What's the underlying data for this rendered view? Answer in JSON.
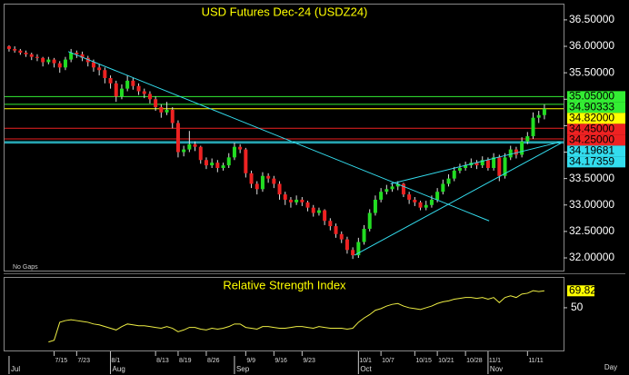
{
  "chart_data": [
    {
      "type": "candlestick",
      "title": "USD Futures Dec-24 (USDZ24)",
      "annotation": "No Gaps",
      "up_color": "#22dd22",
      "down_color": "#ee2222",
      "candles": [
        [
          36.0,
          36.02,
          35.9,
          35.95
        ],
        [
          35.95,
          36.0,
          35.88,
          35.92
        ],
        [
          35.92,
          35.95,
          35.84,
          35.88
        ],
        [
          35.88,
          35.92,
          35.8,
          35.85
        ],
        [
          35.85,
          35.88,
          35.74,
          35.8
        ],
        [
          35.8,
          35.85,
          35.72,
          35.78
        ],
        [
          35.78,
          35.8,
          35.62,
          35.7
        ],
        [
          35.7,
          35.8,
          35.66,
          35.75
        ],
        [
          35.75,
          35.78,
          35.6,
          35.68
        ],
        [
          35.68,
          35.72,
          35.5,
          35.6
        ],
        [
          35.6,
          35.8,
          35.55,
          35.75
        ],
        [
          35.75,
          35.95,
          35.7,
          35.88
        ],
        [
          35.88,
          35.92,
          35.78,
          35.85
        ],
        [
          35.85,
          35.9,
          35.72,
          35.78
        ],
        [
          35.78,
          35.82,
          35.62,
          35.7
        ],
        [
          35.7,
          35.75,
          35.52,
          35.6
        ],
        [
          35.6,
          35.66,
          35.45,
          35.55
        ],
        [
          35.55,
          35.6,
          35.3,
          35.4
        ],
        [
          35.4,
          35.45,
          35.2,
          35.3
        ],
        [
          35.3,
          35.35,
          34.95,
          35.05
        ],
        [
          35.05,
          35.28,
          35.0,
          35.2
        ],
        [
          35.2,
          35.45,
          35.15,
          35.35
        ],
        [
          35.35,
          35.4,
          35.18,
          35.25
        ],
        [
          35.25,
          35.3,
          35.08,
          35.15
        ],
        [
          35.15,
          35.2,
          35.02,
          35.1
        ],
        [
          35.1,
          35.15,
          34.92,
          35.0
        ],
        [
          35.0,
          35.05,
          34.78,
          34.85
        ],
        [
          34.85,
          34.9,
          34.65,
          34.75
        ],
        [
          34.75,
          34.95,
          34.7,
          34.8
        ],
        [
          34.8,
          34.85,
          34.45,
          34.55
        ],
        [
          34.55,
          34.6,
          33.9,
          34.0
        ],
        [
          34.0,
          34.12,
          33.92,
          34.05
        ],
        [
          34.05,
          34.4,
          34.0,
          34.15
        ],
        [
          34.15,
          34.2,
          34.02,
          34.1
        ],
        [
          34.1,
          34.12,
          33.78,
          33.85
        ],
        [
          33.85,
          33.9,
          33.68,
          33.75
        ],
        [
          33.75,
          33.88,
          33.7,
          33.8
        ],
        [
          33.8,
          33.85,
          33.62,
          33.7
        ],
        [
          33.7,
          33.8,
          33.65,
          33.75
        ],
        [
          33.75,
          33.98,
          33.7,
          33.9
        ],
        [
          33.9,
          34.18,
          33.85,
          34.1
        ],
        [
          34.1,
          34.15,
          33.98,
          34.05
        ],
        [
          34.05,
          34.08,
          33.52,
          33.6
        ],
        [
          33.6,
          33.65,
          33.32,
          33.4
        ],
        [
          33.4,
          33.45,
          33.2,
          33.3
        ],
        [
          33.3,
          33.62,
          33.25,
          33.55
        ],
        [
          33.55,
          33.6,
          33.42,
          33.5
        ],
        [
          33.5,
          33.55,
          33.32,
          33.4
        ],
        [
          33.4,
          33.45,
          33.1,
          33.2
        ],
        [
          33.2,
          33.25,
          33.0,
          33.1
        ],
        [
          33.1,
          33.15,
          32.95,
          33.05
        ],
        [
          33.05,
          33.18,
          33.0,
          33.1
        ],
        [
          33.1,
          33.15,
          32.98,
          33.05
        ],
        [
          33.05,
          33.08,
          32.88,
          32.95
        ],
        [
          32.95,
          33.0,
          32.78,
          32.85
        ],
        [
          32.85,
          32.95,
          32.8,
          32.9
        ],
        [
          32.9,
          32.92,
          32.62,
          32.7
        ],
        [
          32.7,
          32.75,
          32.52,
          32.6
        ],
        [
          32.6,
          32.65,
          32.38,
          32.45
        ],
        [
          32.45,
          32.5,
          32.28,
          32.35
        ],
        [
          32.35,
          32.4,
          32.08,
          32.15
        ],
        [
          32.15,
          32.2,
          31.98,
          32.05
        ],
        [
          32.05,
          32.38,
          32.0,
          32.3
        ],
        [
          32.3,
          32.62,
          32.25,
          32.55
        ],
        [
          32.55,
          32.92,
          32.5,
          32.85
        ],
        [
          32.85,
          33.18,
          32.8,
          33.1
        ],
        [
          33.1,
          33.32,
          33.05,
          33.25
        ],
        [
          33.25,
          33.38,
          33.2,
          33.3
        ],
        [
          33.3,
          33.42,
          33.25,
          33.35
        ],
        [
          33.35,
          33.45,
          33.28,
          33.4
        ],
        [
          33.4,
          33.42,
          33.15,
          33.2
        ],
        [
          33.2,
          33.25,
          33.02,
          33.1
        ],
        [
          33.1,
          33.15,
          32.98,
          33.05
        ],
        [
          33.05,
          33.08,
          32.9,
          32.95
        ],
        [
          32.95,
          33.08,
          32.9,
          33.0
        ],
        [
          33.0,
          33.18,
          32.95,
          33.1
        ],
        [
          33.1,
          33.32,
          33.05,
          33.25
        ],
        [
          33.25,
          33.48,
          33.2,
          33.4
        ],
        [
          33.4,
          33.58,
          33.35,
          33.5
        ],
        [
          33.5,
          33.72,
          33.45,
          33.65
        ],
        [
          33.65,
          33.78,
          33.6,
          33.7
        ],
        [
          33.7,
          33.82,
          33.65,
          33.75
        ],
        [
          33.75,
          33.88,
          33.7,
          33.8
        ],
        [
          33.8,
          33.85,
          33.68,
          33.75
        ],
        [
          33.75,
          33.92,
          33.7,
          33.85
        ],
        [
          33.85,
          33.9,
          33.65,
          33.7
        ],
        [
          33.7,
          33.98,
          33.65,
          33.9
        ],
        [
          33.9,
          33.95,
          33.45,
          33.55
        ],
        [
          33.55,
          33.98,
          33.5,
          33.9
        ],
        [
          33.9,
          34.12,
          33.85,
          34.05
        ],
        [
          34.05,
          34.1,
          33.88,
          33.95
        ],
        [
          33.95,
          34.28,
          33.9,
          34.2
        ],
        [
          34.2,
          34.38,
          34.15,
          34.3
        ],
        [
          34.3,
          34.75,
          34.25,
          34.65
        ],
        [
          34.65,
          34.78,
          34.55,
          34.7
        ],
        [
          34.7,
          34.9,
          34.62,
          34.82
        ]
      ],
      "xlim": [
        -0.8,
        98.4
      ],
      "xticks": [
        {
          "value": 8,
          "label": "7/15"
        },
        {
          "value": 12,
          "label": "7/23"
        },
        {
          "value": 18,
          "label": "8/1"
        },
        {
          "value": 26,
          "label": "8/13"
        },
        {
          "value": 30,
          "label": "8/19"
        },
        {
          "value": 35,
          "label": "8/26"
        },
        {
          "value": 42,
          "label": "9/9"
        },
        {
          "value": 47,
          "label": "9/16"
        },
        {
          "value": 52,
          "label": "9/23"
        },
        {
          "value": 62,
          "label": "10/1"
        },
        {
          "value": 66,
          "label": "10/7"
        },
        {
          "value": 72,
          "label": "10/15"
        },
        {
          "value": 76,
          "label": "10/21"
        },
        {
          "value": 81,
          "label": "10/28"
        },
        {
          "value": 85,
          "label": "11/1"
        },
        {
          "value": 92,
          "label": "11/11"
        }
      ],
      "month_ticks": [
        {
          "value": 0,
          "label": "Jul"
        },
        {
          "value": 18,
          "label": "Aug"
        },
        {
          "value": 40,
          "label": "Sep"
        },
        {
          "value": 62,
          "label": "Oct"
        },
        {
          "value": 85,
          "label": "Nov"
        }
      ],
      "x_unit_label": "Day",
      "ylim": [
        31.76,
        36.79
      ],
      "yticks": [
        {
          "value": 36.5,
          "label": "36.50000"
        },
        {
          "value": 36.0,
          "label": "36.00000"
        },
        {
          "value": 35.5,
          "label": "35.50000"
        },
        {
          "value": 35.0,
          "label": "35.00000"
        },
        {
          "value": 34.5,
          "label": "34.50000"
        },
        {
          "value": 34.0,
          "label": "34.00000"
        },
        {
          "value": 33.5,
          "label": "33.50000"
        },
        {
          "value": 33.0,
          "label": "33.00000"
        },
        {
          "value": 32.5,
          "label": "32.50000"
        },
        {
          "value": 32.0,
          "label": "32.00000"
        }
      ],
      "levels": [
        {
          "value": 35.05,
          "label": "35.05000",
          "color": "#33ee33"
        },
        {
          "value": 34.90333,
          "label": "34.90333",
          "color": "#33ee33"
        },
        {
          "value": 34.82,
          "label": "34.82000",
          "color": "#ffff00"
        },
        {
          "value": 34.45,
          "label": "34.45000",
          "color": "#ee2222"
        },
        {
          "value": 34.25,
          "label": "34.25000",
          "color": "#ee2222"
        },
        {
          "value": 34.19681,
          "label": "34.19681",
          "color": "#33ddee"
        },
        {
          "value": 34.17359,
          "label": "34.17359",
          "color": "#33ddee"
        }
      ],
      "trendlines": [
        {
          "x": [
            10.5,
            85.2
          ],
          "y": [
            35.9,
            32.7
          ],
          "color": "#33ddee"
        },
        {
          "x": [
            61.3,
            98
          ],
          "y": [
            32.05,
            34.17359
          ],
          "color": "#33ddee"
        },
        {
          "x": [
            67.7,
            98
          ],
          "y": [
            33.4,
            34.19681
          ],
          "color": "#33ddee"
        }
      ]
    },
    {
      "type": "line",
      "title": "Relative Strength Index",
      "color": "#eeee44",
      "values": [
        null,
        null,
        null,
        null,
        null,
        null,
        null,
        10,
        12,
        33,
        35,
        36,
        35,
        34,
        33,
        31,
        30,
        28,
        26,
        24,
        28,
        31,
        30,
        29,
        29,
        28,
        27,
        26,
        28,
        26,
        22,
        24,
        27,
        27,
        25,
        24,
        26,
        25,
        26,
        28,
        31,
        31,
        27,
        26,
        25,
        28,
        28,
        27,
        26,
        26,
        27,
        28,
        28,
        27,
        26,
        28,
        27,
        26,
        26,
        26,
        25,
        26,
        33,
        38,
        42,
        47,
        49,
        52,
        54,
        55,
        52,
        50,
        49,
        48,
        50,
        52,
        55,
        57,
        58,
        60,
        61,
        62,
        62,
        61,
        62,
        60,
        62,
        56,
        62,
        64,
        62,
        66,
        67,
        70,
        69,
        69.82
      ],
      "last_label": "69.82",
      "last_color": "#ffff00",
      "ylim": [
        0,
        85
      ],
      "yticks": [
        50
      ]
    }
  ]
}
